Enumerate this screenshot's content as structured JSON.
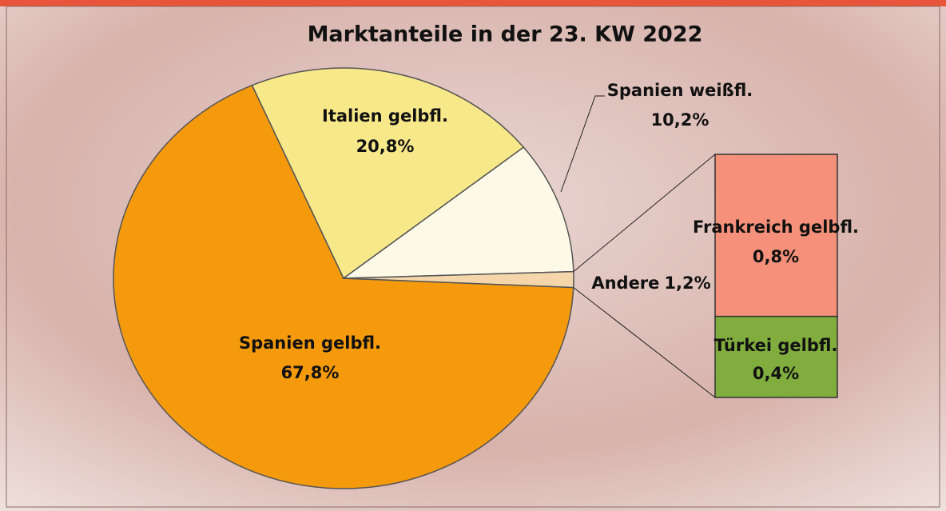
{
  "chart_data": {
    "type": "pie",
    "title": "Marktanteile in der 23. KW 2022",
    "categories": [
      "Spanien gelbfl.",
      "Italien gelbfl.",
      "Spanien weißfl.",
      "Andere"
    ],
    "values": [
      67.8,
      20.8,
      10.2,
      1.2
    ],
    "value_labels": [
      "67,8%",
      "20,8%",
      "10,2%",
      "1,2%"
    ],
    "colors": [
      "#f49a0c",
      "#f7e88a",
      "#fcfae6",
      "#f4d6aa"
    ],
    "breakdown": {
      "type": "bar",
      "of": "Andere",
      "categories": [
        "Frankreich gelbfl.",
        "Türkei gelbfl."
      ],
      "values": [
        0.8,
        0.4
      ],
      "value_labels": [
        "0,8%",
        "0,4%"
      ],
      "colors": [
        "#f5917a",
        "#80ad3e"
      ]
    }
  }
}
